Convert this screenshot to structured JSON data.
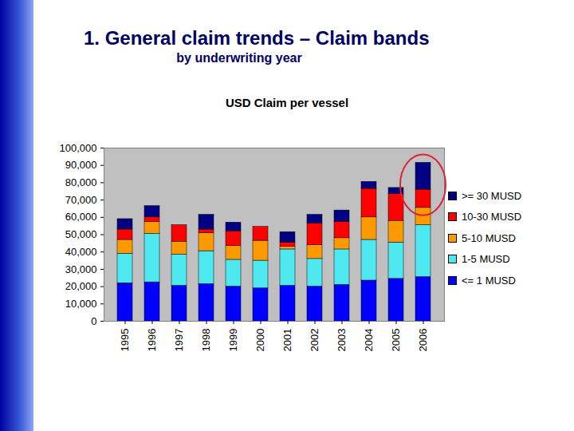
{
  "chart_data": {
    "type": "bar",
    "heading": "1. General claim trends – Claim bands",
    "subtitle": "by underwriting year",
    "title": "USD Claim per vessel",
    "stacked": true,
    "grid": false,
    "legend": "right",
    "categories": [
      "1995",
      "1996",
      "1997",
      "1998",
      "1999",
      "2000",
      "2001",
      "2002",
      "2003",
      "2004",
      "2005",
      "2006"
    ],
    "series": [
      {
        "name": "<= 1 MUSD",
        "color": "#0000ff",
        "values": [
          22000,
          22500,
          20500,
          21500,
          20000,
          19000,
          20500,
          20000,
          21000,
          23500,
          24500,
          25500
        ]
      },
      {
        "name": "1-5 MUSD",
        "color": "#4fe8f0",
        "values": [
          17000,
          28000,
          18000,
          19000,
          15500,
          16000,
          21000,
          16000,
          20500,
          23500,
          21000,
          30000
        ]
      },
      {
        "name": "5-10 MUSD",
        "color": "#ff9900",
        "values": [
          8000,
          7000,
          7500,
          10500,
          8000,
          11500,
          1500,
          8000,
          6500,
          13000,
          12500,
          10000
        ]
      },
      {
        "name": "10-30 MUSD",
        "color": "#ff0000",
        "values": [
          6000,
          2500,
          9500,
          2000,
          8500,
          8000,
          2500,
          12500,
          9500,
          16500,
          15500,
          10500
        ]
      },
      {
        "name": ">= 30 MUSD",
        "color": "#000080",
        "values": [
          6000,
          6500,
          0,
          8500,
          5000,
          0,
          6000,
          5000,
          6500,
          4000,
          3500,
          15500
        ]
      }
    ],
    "ylim": [
      0,
      100000
    ],
    "yticks": [
      0,
      {
        "value": 10000,
        "label": "10,000"
      },
      {
        "value": 20000,
        "label": "20,000"
      },
      {
        "value": 30000,
        "label": "30,000"
      },
      {
        "value": 40000,
        "label": "40,000"
      },
      {
        "value": 50000,
        "label": "50,000"
      },
      {
        "value": 60000,
        "label": "60,000"
      },
      {
        "value": 70000,
        "label": "70,000"
      },
      {
        "value": 80000,
        "label": "80,000"
      },
      {
        "value": 90000,
        "label": "90,000"
      },
      {
        "value": 100000,
        "label": "100,000"
      }
    ]
  }
}
